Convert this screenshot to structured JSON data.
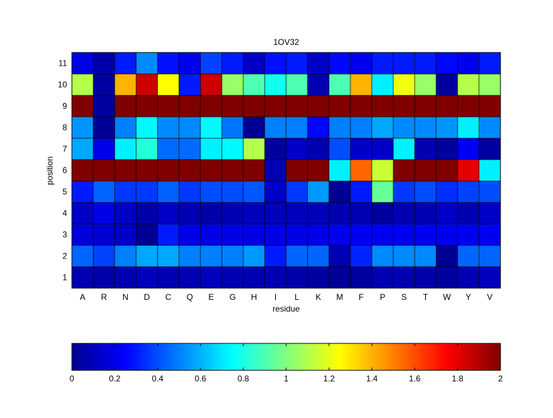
{
  "chart_data": {
    "type": "heatmap",
    "title": "1OV32",
    "xlabel": "residue",
    "ylabel": "position",
    "x_categories": [
      "A",
      "R",
      "N",
      "D",
      "C",
      "Q",
      "E",
      "G",
      "H",
      "I",
      "L",
      "K",
      "M",
      "F",
      "P",
      "S",
      "T",
      "W",
      "Y",
      "V"
    ],
    "y_categories": [
      "1",
      "2",
      "3",
      "4",
      "5",
      "6",
      "7",
      "8",
      "9",
      "10",
      "11"
    ],
    "colorbar": {
      "min": 0,
      "max": 2,
      "ticks": [
        "0",
        "0.2",
        "0.4",
        "0.6",
        "0.8",
        "1",
        "1.2",
        "1.4",
        "1.6",
        "1.8",
        "2"
      ],
      "colormap": "jet",
      "placement": "bottom"
    },
    "values": [
      [
        0.1,
        0.08,
        0.1,
        0.12,
        0.1,
        0.1,
        0.12,
        0.1,
        0.1,
        0.1,
        0.08,
        0.06,
        0.04,
        0.06,
        0.1,
        0.1,
        0.08,
        0.06,
        0.1,
        0.12
      ],
      [
        0.45,
        0.38,
        0.5,
        0.58,
        0.58,
        0.5,
        0.5,
        0.5,
        0.55,
        0.3,
        0.45,
        0.45,
        0.1,
        0.32,
        0.52,
        0.52,
        0.52,
        0.04,
        0.45,
        0.45
      ],
      [
        0.18,
        0.16,
        0.14,
        0.04,
        0.3,
        0.2,
        0.2,
        0.2,
        0.2,
        0.2,
        0.2,
        0.2,
        0.22,
        0.22,
        0.22,
        0.22,
        0.22,
        0.22,
        0.22,
        0.22
      ],
      [
        0.14,
        0.2,
        0.14,
        0.08,
        0.14,
        0.1,
        0.08,
        0.1,
        0.12,
        0.12,
        0.12,
        0.12,
        0.1,
        0.1,
        0.06,
        0.1,
        0.1,
        0.14,
        0.1,
        0.14
      ],
      [
        0.3,
        0.45,
        0.36,
        0.36,
        0.44,
        0.36,
        0.4,
        0.4,
        0.42,
        0.14,
        0.36,
        0.55,
        0.04,
        0.3,
        0.95,
        0.36,
        0.4,
        0.34,
        0.38,
        0.4
      ],
      [
        2.0,
        2.0,
        2.0,
        2.0,
        2.0,
        2.0,
        2.0,
        2.0,
        2.0,
        0.1,
        2.0,
        2.0,
        0.72,
        1.55,
        1.15,
        2.0,
        2.0,
        2.0,
        1.8,
        0.72
      ],
      [
        0.58,
        0.2,
        0.72,
        0.82,
        0.46,
        0.46,
        0.72,
        0.74,
        1.1,
        0.06,
        0.14,
        0.1,
        0.4,
        0.14,
        0.14,
        0.72,
        0.1,
        0.06,
        0.22,
        0.06
      ],
      [
        0.54,
        0.04,
        0.5,
        0.74,
        0.52,
        0.52,
        0.74,
        0.48,
        0.04,
        0.5,
        0.5,
        0.26,
        0.5,
        0.5,
        0.58,
        0.52,
        0.52,
        0.54,
        0.72,
        0.52
      ],
      [
        2.0,
        0.06,
        2.0,
        2.0,
        2.0,
        2.0,
        2.0,
        2.0,
        2.0,
        2.0,
        2.0,
        2.0,
        2.0,
        2.0,
        2.0,
        2.0,
        2.0,
        2.0,
        2.0,
        2.0
      ],
      [
        1.1,
        0.06,
        1.4,
        1.85,
        1.25,
        0.3,
        1.85,
        1.05,
        0.9,
        0.78,
        0.9,
        0.1,
        0.9,
        1.4,
        0.72,
        1.22,
        1.05,
        0.06,
        1.1,
        1.05
      ],
      [
        0.2,
        0.08,
        0.3,
        0.52,
        0.28,
        0.22,
        0.38,
        0.3,
        0.14,
        0.28,
        0.3,
        0.14,
        0.26,
        0.22,
        0.3,
        0.3,
        0.3,
        0.26,
        0.22,
        0.3
      ]
    ]
  }
}
